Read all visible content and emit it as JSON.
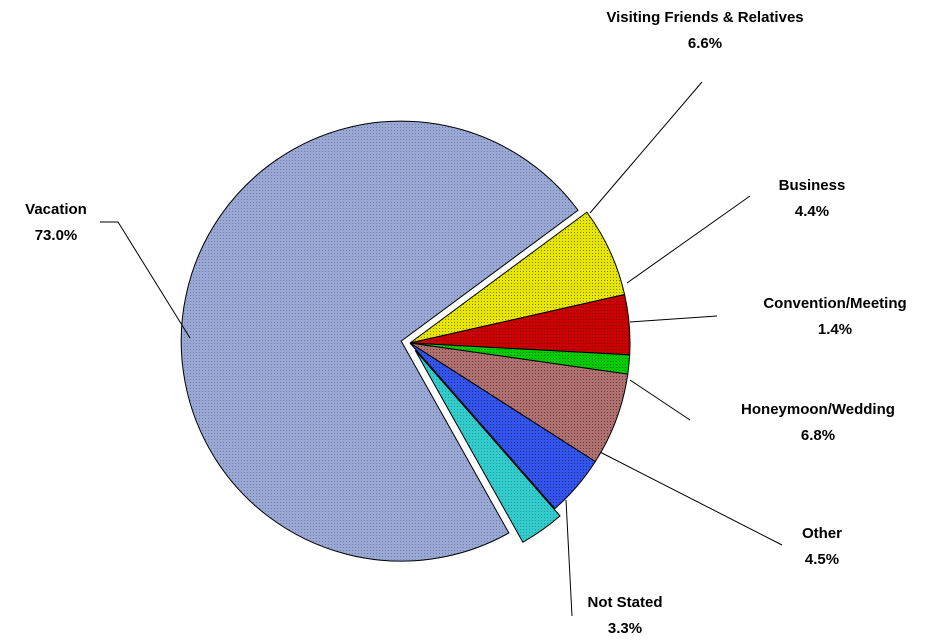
{
  "chart_data": {
    "type": "pie",
    "title": "",
    "slices": [
      {
        "name": "Visiting Friends & Relatives",
        "value": 6.6,
        "label": "6.6%",
        "color": "#e6e600",
        "pattern": "dots-dark"
      },
      {
        "name": "Business",
        "value": 4.4,
        "label": "4.4%",
        "color": "#cc0000",
        "pattern": "dots-dark"
      },
      {
        "name": "Convention/Meeting",
        "value": 1.4,
        "label": "1.4%",
        "color": "#00cc00",
        "pattern": "dots-dark"
      },
      {
        "name": "Honeymoon/Wedding",
        "value": 6.8,
        "label": "6.8%",
        "color": "#b07070",
        "pattern": "dots-dark"
      },
      {
        "name": "Other",
        "value": 4.5,
        "label": "4.5%",
        "color": "#3355ee",
        "pattern": "dots-dark"
      },
      {
        "name": "Not Stated",
        "value": 3.3,
        "label": "3.3%",
        "color": "#33cccc",
        "pattern": "dots-light",
        "exploded": true
      },
      {
        "name": "Vacation",
        "value": 73.0,
        "label": "73.0%",
        "color": "#99a8d4",
        "pattern": "dots-light",
        "exploded": true
      }
    ],
    "legend": "none",
    "labels": "outside-with-leader-lines"
  }
}
